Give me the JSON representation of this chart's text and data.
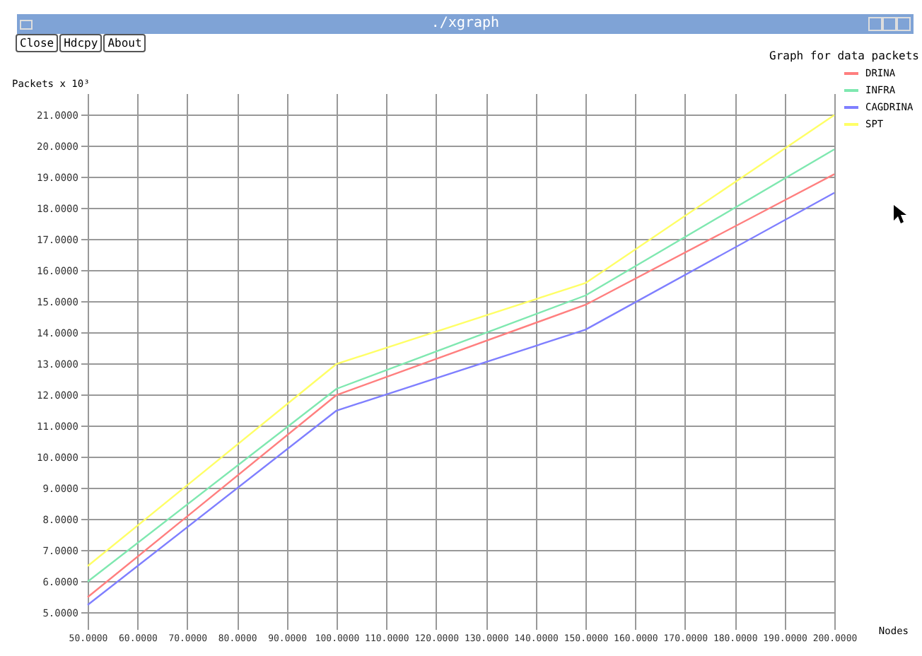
{
  "chart_data": {
    "type": "line",
    "title": "Graph for data packets",
    "xlabel": "Nodes",
    "ylabel": "Packets x 10³",
    "annotations": [
      "./xgraph",
      "Close",
      "Hdcpy",
      "About"
    ],
    "x": [
      50,
      100,
      150,
      200
    ],
    "series": [
      {
        "name": "DRINA",
        "color": "#ff7f7f",
        "values": [
          5.5,
          12.0,
          14.9,
          19.1
        ]
      },
      {
        "name": "INFRA",
        "color": "#7fe8b0",
        "values": [
          6.0,
          12.2,
          15.2,
          19.9
        ]
      },
      {
        "name": "CAGDRINA",
        "color": "#7f7fff",
        "values": [
          5.25,
          11.5,
          14.1,
          18.5
        ]
      },
      {
        "name": "SPT",
        "color": "#ffff66",
        "values": [
          6.5,
          13.0,
          15.6,
          21.0
        ]
      }
    ],
    "xlim": [
      50,
      200
    ],
    "ylim": [
      4.7,
      21.7
    ],
    "xticks": [
      {
        "value": 50,
        "label": "50.0000"
      },
      {
        "value": 60,
        "label": "60.0000"
      },
      {
        "value": 70,
        "label": "70.0000"
      },
      {
        "value": 80,
        "label": "80.0000"
      },
      {
        "value": 90,
        "label": "90.0000"
      },
      {
        "value": 100,
        "label": "100.0000"
      },
      {
        "value": 110,
        "label": "110.0000"
      },
      {
        "value": 120,
        "label": "120.0000"
      },
      {
        "value": 130,
        "label": "130.0000"
      },
      {
        "value": 140,
        "label": "140.0000"
      },
      {
        "value": 150,
        "label": "150.0000"
      },
      {
        "value": 160,
        "label": "160.0000"
      },
      {
        "value": 170,
        "label": "170.0000"
      },
      {
        "value": 180,
        "label": "180.0000"
      },
      {
        "value": 190,
        "label": "190.0000"
      },
      {
        "value": 200,
        "label": "200.0000"
      }
    ],
    "yticks": [
      {
        "value": 5,
        "label": "5.0000"
      },
      {
        "value": 6,
        "label": "6.0000"
      },
      {
        "value": 7,
        "label": "7.0000"
      },
      {
        "value": 8,
        "label": "8.0000"
      },
      {
        "value": 9,
        "label": "9.0000"
      },
      {
        "value": 10,
        "label": "10.0000"
      },
      {
        "value": 11,
        "label": "11.0000"
      },
      {
        "value": 12,
        "label": "12.0000"
      },
      {
        "value": 13,
        "label": "13.0000"
      },
      {
        "value": 14,
        "label": "14.0000"
      },
      {
        "value": 15,
        "label": "15.0000"
      },
      {
        "value": 16,
        "label": "16.0000"
      },
      {
        "value": 17,
        "label": "17.0000"
      },
      {
        "value": 18,
        "label": "18.0000"
      },
      {
        "value": 19,
        "label": "19.0000"
      },
      {
        "value": 20,
        "label": "20.0000"
      },
      {
        "value": 21,
        "label": "21.0000"
      }
    ],
    "grid": true,
    "legend": "top right",
    "marker": "none",
    "line_style": "solid"
  }
}
